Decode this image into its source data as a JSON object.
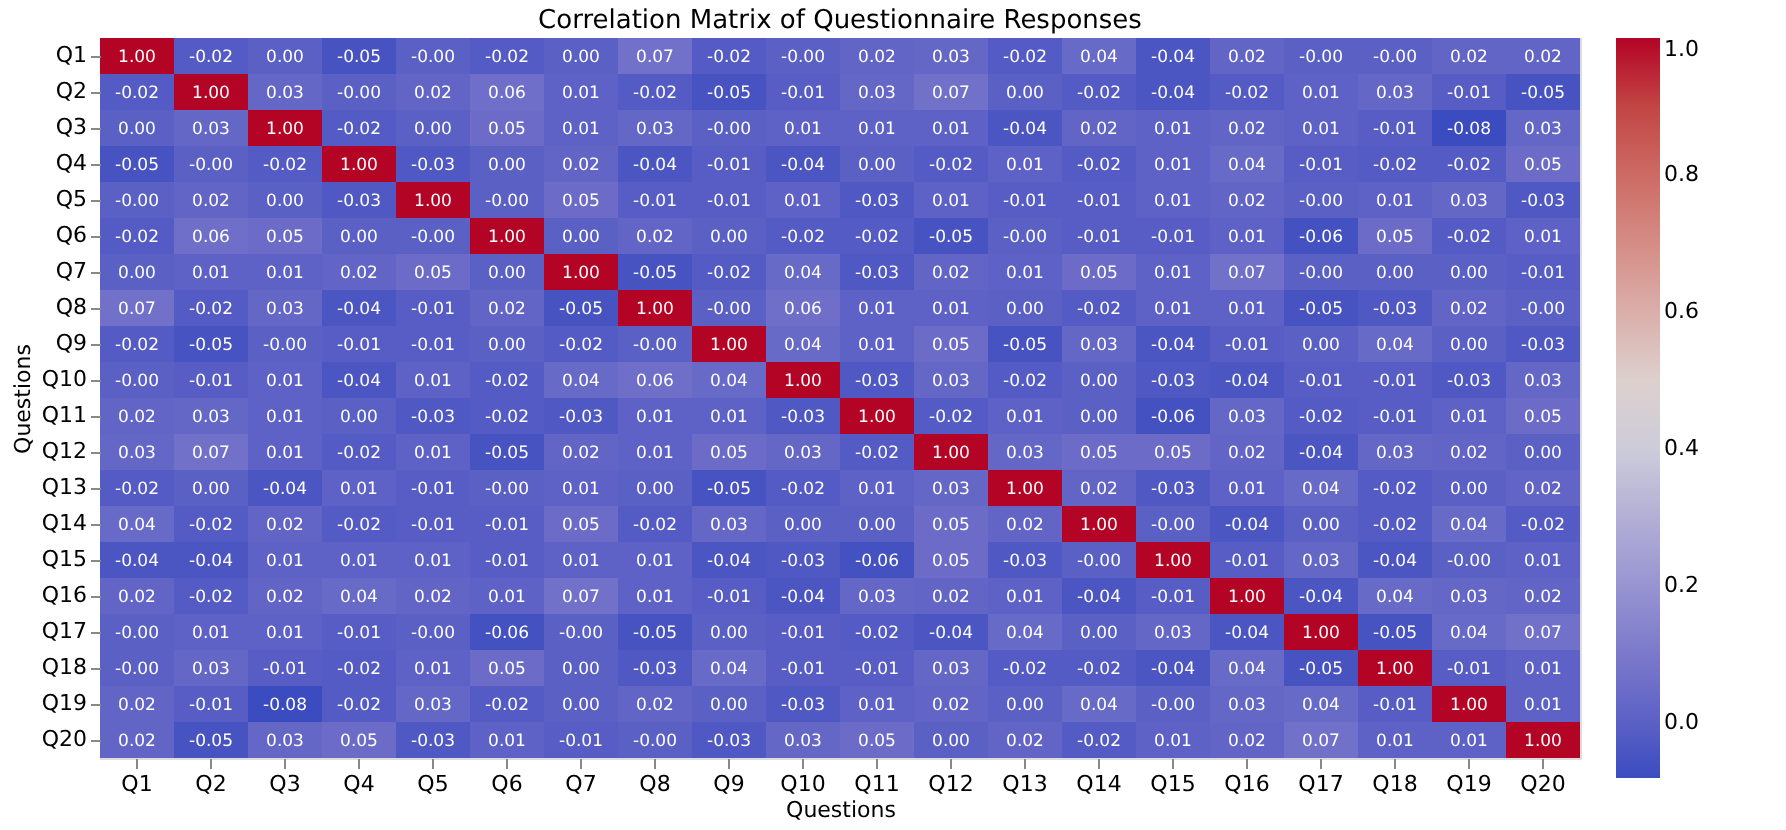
{
  "chart_data": {
    "type": "heatmap",
    "title": "Correlation Matrix of Questionnaire Responses",
    "xlabel": "Questions",
    "ylabel": "Questions",
    "categories": [
      "Q1",
      "Q2",
      "Q3",
      "Q4",
      "Q5",
      "Q6",
      "Q7",
      "Q8",
      "Q9",
      "Q10",
      "Q11",
      "Q12",
      "Q13",
      "Q14",
      "Q15",
      "Q16",
      "Q17",
      "Q18",
      "Q19",
      "Q20"
    ],
    "y_categories": [
      "Q1",
      "Q2",
      "Q3",
      "Q4",
      "Q5",
      "Q6",
      "Q7",
      "Q8",
      "Q9",
      "Q10",
      "Q11",
      "Q12",
      "Q13",
      "Q14",
      "Q15",
      "Q16",
      "Q17",
      "Q18",
      "Q19",
      "Q20"
    ],
    "cells": [
      [
        1.0,
        -0.02,
        0.0,
        -0.05,
        -0.0,
        -0.02,
        0.0,
        0.07,
        -0.02,
        -0.0,
        0.02,
        0.03,
        -0.02,
        0.04,
        -0.04,
        0.02,
        -0.0,
        -0.0,
        0.02,
        0.02
      ],
      [
        -0.02,
        1.0,
        0.03,
        -0.0,
        0.02,
        0.06,
        0.01,
        -0.02,
        -0.05,
        -0.01,
        0.03,
        0.07,
        0.0,
        -0.02,
        -0.04,
        -0.02,
        0.01,
        0.03,
        -0.01,
        -0.05
      ],
      [
        0.0,
        0.03,
        1.0,
        -0.02,
        0.0,
        0.05,
        0.01,
        0.03,
        -0.0,
        0.01,
        0.01,
        0.01,
        -0.04,
        0.02,
        0.01,
        0.02,
        0.01,
        -0.01,
        -0.08,
        0.03
      ],
      [
        -0.05,
        -0.0,
        -0.02,
        1.0,
        -0.03,
        0.0,
        0.02,
        -0.04,
        -0.01,
        -0.04,
        0.0,
        -0.02,
        0.01,
        -0.02,
        0.01,
        0.04,
        -0.01,
        -0.02,
        -0.02,
        0.05
      ],
      [
        -0.0,
        0.02,
        0.0,
        -0.03,
        1.0,
        -0.0,
        0.05,
        -0.01,
        -0.01,
        0.01,
        -0.03,
        0.01,
        -0.01,
        -0.01,
        0.01,
        0.02,
        -0.0,
        0.01,
        0.03,
        -0.03
      ],
      [
        -0.02,
        0.06,
        0.05,
        0.0,
        -0.0,
        1.0,
        0.0,
        0.02,
        0.0,
        -0.02,
        -0.02,
        -0.05,
        -0.0,
        -0.01,
        -0.01,
        0.01,
        -0.06,
        0.05,
        -0.02,
        0.01
      ],
      [
        0.0,
        0.01,
        0.01,
        0.02,
        0.05,
        0.0,
        1.0,
        -0.05,
        -0.02,
        0.04,
        -0.03,
        0.02,
        0.01,
        0.05,
        0.01,
        0.07,
        -0.0,
        0.0,
        0.0,
        -0.01
      ],
      [
        0.07,
        -0.02,
        0.03,
        -0.04,
        -0.01,
        0.02,
        -0.05,
        1.0,
        -0.0,
        0.06,
        0.01,
        0.01,
        0.0,
        -0.02,
        0.01,
        0.01,
        -0.05,
        -0.03,
        0.02,
        -0.0
      ],
      [
        -0.02,
        -0.05,
        -0.0,
        -0.01,
        -0.01,
        0.0,
        -0.02,
        -0.0,
        1.0,
        0.04,
        0.01,
        0.05,
        -0.05,
        0.03,
        -0.04,
        -0.01,
        0.0,
        0.04,
        0.0,
        -0.03
      ],
      [
        -0.0,
        -0.01,
        0.01,
        -0.04,
        0.01,
        -0.02,
        0.04,
        0.06,
        0.04,
        1.0,
        -0.03,
        0.03,
        -0.02,
        0.0,
        -0.03,
        -0.04,
        -0.01,
        -0.01,
        -0.03,
        0.03
      ],
      [
        0.02,
        0.03,
        0.01,
        0.0,
        -0.03,
        -0.02,
        -0.03,
        0.01,
        0.01,
        -0.03,
        1.0,
        -0.02,
        0.01,
        0.0,
        -0.06,
        0.03,
        -0.02,
        -0.01,
        0.01,
        0.05
      ],
      [
        0.03,
        0.07,
        0.01,
        -0.02,
        0.01,
        -0.05,
        0.02,
        0.01,
        0.05,
        0.03,
        -0.02,
        1.0,
        0.03,
        0.05,
        0.05,
        0.02,
        -0.04,
        0.03,
        0.02,
        0.0
      ],
      [
        -0.02,
        0.0,
        -0.04,
        0.01,
        -0.01,
        -0.0,
        0.01,
        0.0,
        -0.05,
        -0.02,
        0.01,
        0.03,
        1.0,
        0.02,
        -0.03,
        0.01,
        0.04,
        -0.02,
        0.0,
        0.02
      ],
      [
        0.04,
        -0.02,
        0.02,
        -0.02,
        -0.01,
        -0.01,
        0.05,
        -0.02,
        0.03,
        0.0,
        0.0,
        0.05,
        0.02,
        1.0,
        -0.0,
        -0.04,
        0.0,
        -0.02,
        0.04,
        -0.02
      ],
      [
        -0.04,
        -0.04,
        0.01,
        0.01,
        0.01,
        -0.01,
        0.01,
        0.01,
        -0.04,
        -0.03,
        -0.06,
        0.05,
        -0.03,
        -0.0,
        1.0,
        -0.01,
        0.03,
        -0.04,
        -0.0,
        0.01
      ],
      [
        0.02,
        -0.02,
        0.02,
        0.04,
        0.02,
        0.01,
        0.07,
        0.01,
        -0.01,
        -0.04,
        0.03,
        0.02,
        0.01,
        -0.04,
        -0.01,
        1.0,
        -0.04,
        0.04,
        0.03,
        0.02
      ],
      [
        -0.0,
        0.01,
        0.01,
        -0.01,
        -0.0,
        -0.06,
        -0.0,
        -0.05,
        0.0,
        -0.01,
        -0.02,
        -0.04,
        0.04,
        0.0,
        0.03,
        -0.04,
        1.0,
        -0.05,
        0.04,
        0.07
      ],
      [
        -0.0,
        0.03,
        -0.01,
        -0.02,
        0.01,
        0.05,
        0.0,
        -0.03,
        0.04,
        -0.01,
        -0.01,
        0.03,
        -0.02,
        -0.02,
        -0.04,
        0.04,
        -0.05,
        1.0,
        -0.01,
        0.01
      ],
      [
        0.02,
        -0.01,
        -0.08,
        -0.02,
        0.03,
        -0.02,
        0.0,
        0.02,
        0.0,
        -0.03,
        0.01,
        0.02,
        0.0,
        0.04,
        -0.0,
        0.03,
        0.04,
        -0.01,
        1.0,
        0.01
      ],
      [
        0.02,
        -0.05,
        0.03,
        0.05,
        -0.03,
        0.01,
        -0.01,
        -0.0,
        -0.03,
        0.03,
        0.05,
        0.0,
        0.02,
        -0.02,
        0.01,
        0.02,
        0.07,
        0.01,
        0.01,
        1.0
      ]
    ],
    "cell_labels": [
      [
        "1.00",
        "-0.02",
        "0.00",
        "-0.05",
        "-0.00",
        "-0.02",
        "0.00",
        "0.07",
        "-0.02",
        "-0.00",
        "0.02",
        "0.03",
        "-0.02",
        "0.04",
        "-0.04",
        "0.02",
        "-0.00",
        "-0.00",
        "0.02",
        "0.02"
      ],
      [
        "-0.02",
        "1.00",
        "0.03",
        "-0.00",
        "0.02",
        "0.06",
        "0.01",
        "-0.02",
        "-0.05",
        "-0.01",
        "0.03",
        "0.07",
        "0.00",
        "-0.02",
        "-0.04",
        "-0.02",
        "0.01",
        "0.03",
        "-0.01",
        "-0.05"
      ],
      [
        "0.00",
        "0.03",
        "1.00",
        "-0.02",
        "0.00",
        "0.05",
        "0.01",
        "0.03",
        "-0.00",
        "0.01",
        "0.01",
        "0.01",
        "-0.04",
        "0.02",
        "0.01",
        "0.02",
        "0.01",
        "-0.01",
        "-0.08",
        "0.03"
      ],
      [
        "-0.05",
        "-0.00",
        "-0.02",
        "1.00",
        "-0.03",
        "0.00",
        "0.02",
        "-0.04",
        "-0.01",
        "-0.04",
        "0.00",
        "-0.02",
        "0.01",
        "-0.02",
        "0.01",
        "0.04",
        "-0.01",
        "-0.02",
        "-0.02",
        "0.05"
      ],
      [
        "-0.00",
        "0.02",
        "0.00",
        "-0.03",
        "1.00",
        "-0.00",
        "0.05",
        "-0.01",
        "-0.01",
        "0.01",
        "-0.03",
        "0.01",
        "-0.01",
        "-0.01",
        "0.01",
        "0.02",
        "-0.00",
        "0.01",
        "0.03",
        "-0.03"
      ],
      [
        "-0.02",
        "0.06",
        "0.05",
        "0.00",
        "-0.00",
        "1.00",
        "0.00",
        "0.02",
        "0.00",
        "-0.02",
        "-0.02",
        "-0.05",
        "-0.00",
        "-0.01",
        "-0.01",
        "0.01",
        "-0.06",
        "0.05",
        "-0.02",
        "0.01"
      ],
      [
        "0.00",
        "0.01",
        "0.01",
        "0.02",
        "0.05",
        "0.00",
        "1.00",
        "-0.05",
        "-0.02",
        "0.04",
        "-0.03",
        "0.02",
        "0.01",
        "0.05",
        "0.01",
        "0.07",
        "-0.00",
        "0.00",
        "0.00",
        "-0.01"
      ],
      [
        "0.07",
        "-0.02",
        "0.03",
        "-0.04",
        "-0.01",
        "0.02",
        "-0.05",
        "1.00",
        "-0.00",
        "0.06",
        "0.01",
        "0.01",
        "0.00",
        "-0.02",
        "0.01",
        "0.01",
        "-0.05",
        "-0.03",
        "0.02",
        "-0.00"
      ],
      [
        "-0.02",
        "-0.05",
        "-0.00",
        "-0.01",
        "-0.01",
        "0.00",
        "-0.02",
        "-0.00",
        "1.00",
        "0.04",
        "0.01",
        "0.05",
        "-0.05",
        "0.03",
        "-0.04",
        "-0.01",
        "0.00",
        "0.04",
        "0.00",
        "-0.03"
      ],
      [
        "-0.00",
        "-0.01",
        "0.01",
        "-0.04",
        "0.01",
        "-0.02",
        "0.04",
        "0.06",
        "0.04",
        "1.00",
        "-0.03",
        "0.03",
        "-0.02",
        "0.00",
        "-0.03",
        "-0.04",
        "-0.01",
        "-0.01",
        "-0.03",
        "0.03"
      ],
      [
        "0.02",
        "0.03",
        "0.01",
        "0.00",
        "-0.03",
        "-0.02",
        "-0.03",
        "0.01",
        "0.01",
        "-0.03",
        "1.00",
        "-0.02",
        "0.01",
        "0.00",
        "-0.06",
        "0.03",
        "-0.02",
        "-0.01",
        "0.01",
        "0.05"
      ],
      [
        "0.03",
        "0.07",
        "0.01",
        "-0.02",
        "0.01",
        "-0.05",
        "0.02",
        "0.01",
        "0.05",
        "0.03",
        "-0.02",
        "1.00",
        "0.03",
        "0.05",
        "0.05",
        "0.02",
        "-0.04",
        "0.03",
        "0.02",
        "0.00"
      ],
      [
        "-0.02",
        "0.00",
        "-0.04",
        "0.01",
        "-0.01",
        "-0.00",
        "0.01",
        "0.00",
        "-0.05",
        "-0.02",
        "0.01",
        "0.03",
        "1.00",
        "0.02",
        "-0.03",
        "0.01",
        "0.04",
        "-0.02",
        "0.00",
        "0.02"
      ],
      [
        "0.04",
        "-0.02",
        "0.02",
        "-0.02",
        "-0.01",
        "-0.01",
        "0.05",
        "-0.02",
        "0.03",
        "0.00",
        "0.00",
        "0.05",
        "0.02",
        "1.00",
        "-0.00",
        "-0.04",
        "0.00",
        "-0.02",
        "0.04",
        "-0.02"
      ],
      [
        "-0.04",
        "-0.04",
        "0.01",
        "0.01",
        "0.01",
        "-0.01",
        "0.01",
        "0.01",
        "-0.04",
        "-0.03",
        "-0.06",
        "0.05",
        "-0.03",
        "-0.00",
        "1.00",
        "-0.01",
        "0.03",
        "-0.04",
        "-0.00",
        "0.01"
      ],
      [
        "0.02",
        "-0.02",
        "0.02",
        "0.04",
        "0.02",
        "0.01",
        "0.07",
        "0.01",
        "-0.01",
        "-0.04",
        "0.03",
        "0.02",
        "0.01",
        "-0.04",
        "-0.01",
        "1.00",
        "-0.04",
        "0.04",
        "0.03",
        "0.02"
      ],
      [
        "-0.00",
        "0.01",
        "0.01",
        "-0.01",
        "-0.00",
        "-0.06",
        "-0.00",
        "-0.05",
        "0.00",
        "-0.01",
        "-0.02",
        "-0.04",
        "0.04",
        "0.00",
        "0.03",
        "-0.04",
        "1.00",
        "-0.05",
        "0.04",
        "0.07"
      ],
      [
        "-0.00",
        "0.03",
        "-0.01",
        "-0.02",
        "0.01",
        "0.05",
        "0.00",
        "-0.03",
        "0.04",
        "-0.01",
        "-0.01",
        "0.03",
        "-0.02",
        "-0.02",
        "-0.04",
        "0.04",
        "-0.05",
        "1.00",
        "-0.01",
        "0.01"
      ],
      [
        "0.02",
        "-0.01",
        "-0.08",
        "-0.02",
        "0.03",
        "-0.02",
        "0.00",
        "0.02",
        "0.00",
        "-0.03",
        "0.01",
        "0.02",
        "0.00",
        "0.04",
        "-0.00",
        "0.03",
        "0.04",
        "-0.01",
        "1.00",
        "0.01"
      ],
      [
        "0.02",
        "-0.05",
        "0.03",
        "0.05",
        "-0.03",
        "0.01",
        "-0.01",
        "-0.00",
        "-0.03",
        "0.03",
        "0.05",
        "0.00",
        "0.02",
        "-0.02",
        "0.01",
        "0.02",
        "0.07",
        "0.01",
        "0.01",
        "1.00"
      ]
    ],
    "clim": [
      -0.08,
      1.0
    ],
    "cticks": [
      {
        "value": 0,
        "label": "0.0"
      },
      {
        "value": 0.2,
        "label": "0.2"
      },
      {
        "value": 0.4,
        "label": "0.4"
      },
      {
        "value": 0.6,
        "label": "0.6"
      },
      {
        "value": 0.8,
        "label": "0.8"
      },
      {
        "value": 1,
        "label": "1.0"
      }
    ]
  }
}
